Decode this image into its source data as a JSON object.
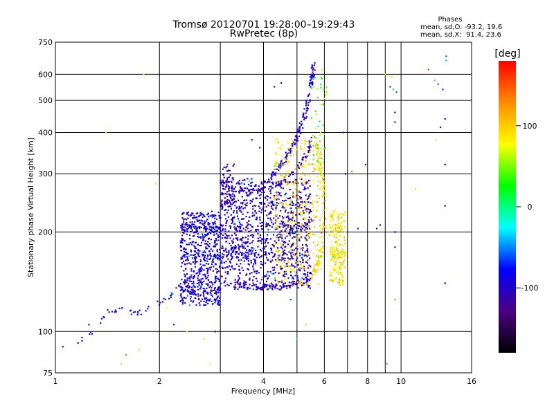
{
  "chart_data": {
    "type": "scatter",
    "title": "Tromsø 20120701 19:28:00–19:29:43",
    "subtitle": "RwPretec (8p)",
    "xlabel": "Frequency [MHz]",
    "ylabel": "Stationary phase Virtual Height [km]",
    "x_scale": "log",
    "y_scale": "log",
    "xlim": [
      1,
      16
    ],
    "ylim": [
      75,
      750
    ],
    "x_ticks": [
      1,
      2,
      4,
      6,
      8,
      10,
      16
    ],
    "x_tick_labels": [
      "1",
      "2",
      "4",
      "6",
      "8",
      "10",
      "16"
    ],
    "y_ticks": [
      75,
      100,
      200,
      300,
      400,
      500,
      600,
      750
    ],
    "y_tick_labels": [
      "75",
      "100",
      "200",
      "300",
      "400",
      "500",
      "600",
      "750"
    ],
    "grid": true,
    "phase_stats": {
      "heading": "Phases",
      "line_o": "mean, sd,O: -93.2, 19.6",
      "line_x": "mean, sd,X:  91.4, 23.6"
    },
    "colorbar": {
      "label": "[deg]",
      "range": [
        -180,
        180
      ],
      "ticks": [
        100,
        0,
        -100
      ],
      "tick_labels": [
        "100",
        "0",
        "-100"
      ],
      "colormap": [
        "#000000",
        "#4b0082",
        "#0000ff",
        "#00ffff",
        "#00ff00",
        "#ffff00",
        "#ff8c00",
        "#ff0000"
      ]
    },
    "echo_regions": [
      {
        "kind": "trace",
        "phase": -93,
        "count": 140,
        "points": [
          [
            1.13,
            93
          ],
          [
            1.35,
            102
          ],
          [
            1.4,
            115
          ],
          [
            1.55,
            118
          ],
          [
            1.7,
            113
          ],
          [
            1.85,
            117
          ],
          [
            2.0,
            122
          ],
          [
            2.15,
            128
          ],
          [
            2.3,
            137
          ],
          [
            2.5,
            147
          ],
          [
            2.7,
            157
          ],
          [
            2.9,
            165
          ],
          [
            3.1,
            172
          ],
          [
            3.3,
            178
          ],
          [
            3.6,
            185
          ],
          [
            4.0,
            190
          ],
          [
            4.4,
            195
          ],
          [
            4.8,
            200
          ],
          [
            5.2,
            208
          ],
          [
            5.5,
            218
          ]
        ]
      },
      {
        "kind": "band",
        "phase": -95,
        "count": 700,
        "x_range": [
          2.3,
          3.0
        ],
        "y_range": [
          120,
          230
        ]
      },
      {
        "kind": "band",
        "phase": -100,
        "count": 1100,
        "x_range": [
          3.0,
          5.5
        ],
        "y_range": [
          135,
          290
        ]
      },
      {
        "kind": "trace",
        "phase": -105,
        "count": 90,
        "points": [
          [
            3.3,
            140
          ],
          [
            3.6,
            137
          ],
          [
            4.0,
            136
          ],
          [
            4.4,
            137
          ],
          [
            4.8,
            139
          ],
          [
            5.2,
            142
          ],
          [
            5.5,
            146
          ]
        ]
      },
      {
        "kind": "trace",
        "phase": -108,
        "count": 90,
        "points": [
          [
            3.4,
            270
          ],
          [
            3.7,
            265
          ],
          [
            4.0,
            268
          ],
          [
            4.3,
            275
          ],
          [
            4.6,
            288
          ],
          [
            5.0,
            310
          ],
          [
            5.3,
            340
          ],
          [
            5.5,
            380
          ]
        ]
      },
      {
        "kind": "trace",
        "phase": -98,
        "count": 160,
        "points": [
          [
            4.0,
            280
          ],
          [
            4.3,
            300
          ],
          [
            4.6,
            330
          ],
          [
            4.9,
            370
          ],
          [
            5.1,
            410
          ],
          [
            5.3,
            460
          ],
          [
            5.45,
            530
          ],
          [
            5.55,
            600
          ],
          [
            5.6,
            650
          ]
        ]
      },
      {
        "kind": "band",
        "phase": -112,
        "count": 80,
        "x_range": [
          3.0,
          3.3
        ],
        "y_range": [
          230,
          320
        ]
      },
      {
        "kind": "band",
        "phase": 95,
        "count": 350,
        "x_range": [
          4.3,
          5.9
        ],
        "y_range": [
          140,
          380
        ]
      },
      {
        "kind": "trace",
        "phase": 92,
        "count": 110,
        "points": [
          [
            5.6,
            390
          ],
          [
            5.7,
            360
          ],
          [
            5.8,
            330
          ],
          [
            5.9,
            300
          ],
          [
            5.95,
            270
          ],
          [
            6.0,
            240
          ],
          [
            6.0,
            210
          ],
          [
            5.9,
            180
          ],
          [
            5.75,
            160
          ],
          [
            5.6,
            150
          ]
        ]
      },
      {
        "kind": "band",
        "phase": 88,
        "count": 220,
        "x_range": [
          6.2,
          6.9
        ],
        "y_range": [
          140,
          230
        ]
      },
      {
        "kind": "band",
        "phase": 40,
        "count": 40,
        "x_range": [
          5.5,
          6.1
        ],
        "y_range": [
          330,
          600
        ]
      }
    ],
    "sparse_points": [
      [
        1.05,
        90,
        -90
      ],
      [
        1.25,
        105,
        -80
      ],
      [
        1.4,
        400,
        80
      ],
      [
        1.55,
        80,
        60
      ],
      [
        1.6,
        85,
        30
      ],
      [
        1.75,
        88,
        60
      ],
      [
        1.8,
        600,
        90
      ],
      [
        1.95,
        280,
        90
      ],
      [
        2.1,
        118,
        80
      ],
      [
        2.4,
        100,
        90
      ],
      [
        2.7,
        95,
        90
      ],
      [
        2.8,
        80,
        80
      ],
      [
        2.9,
        100,
        -80
      ],
      [
        3.7,
        380,
        -100
      ],
      [
        4.3,
        550,
        -120
      ],
      [
        4.5,
        565,
        -110
      ],
      [
        4.8,
        125,
        -60
      ],
      [
        5.0,
        95,
        20
      ],
      [
        5.3,
        105,
        60
      ],
      [
        6.6,
        225,
        90
      ],
      [
        6.8,
        400,
        -70
      ],
      [
        6.9,
        300,
        -100
      ],
      [
        7.2,
        305,
        20
      ],
      [
        7.5,
        205,
        -110
      ],
      [
        7.9,
        320,
        -120
      ],
      [
        8.5,
        205,
        -100
      ],
      [
        8.7,
        210,
        -130
      ],
      [
        9.0,
        600,
        90
      ],
      [
        9.1,
        80,
        20
      ],
      [
        9.3,
        550,
        -70
      ],
      [
        9.4,
        590,
        60
      ],
      [
        9.5,
        540,
        10
      ],
      [
        9.6,
        460,
        -140
      ],
      [
        9.6,
        430,
        -130
      ],
      [
        9.6,
        200,
        -80
      ],
      [
        9.6,
        180,
        -95
      ],
      [
        9.6,
        125,
        20
      ],
      [
        9.7,
        530,
        -60
      ],
      [
        11.0,
        270,
        90
      ],
      [
        12.0,
        620,
        160
      ],
      [
        12.5,
        575,
        40
      ],
      [
        12.6,
        380,
        60
      ],
      [
        12.8,
        560,
        -60
      ],
      [
        13.0,
        415,
        -100
      ],
      [
        13.2,
        540,
        -70
      ],
      [
        13.4,
        320,
        -80
      ],
      [
        13.4,
        240,
        -100
      ],
      [
        13.4,
        140,
        -90
      ],
      [
        13.5,
        680,
        -60
      ],
      [
        13.5,
        660,
        -40
      ],
      [
        13.4,
        440,
        -100
      ],
      [
        5.9,
        620,
        90
      ],
      [
        6.2,
        200,
        95
      ],
      [
        6.5,
        160,
        90
      ],
      [
        3.9,
        360,
        -95
      ],
      [
        4.1,
        250,
        -110
      ],
      [
        2.2,
        105,
        -100
      ],
      [
        2.6,
        125,
        -105
      ]
    ]
  }
}
